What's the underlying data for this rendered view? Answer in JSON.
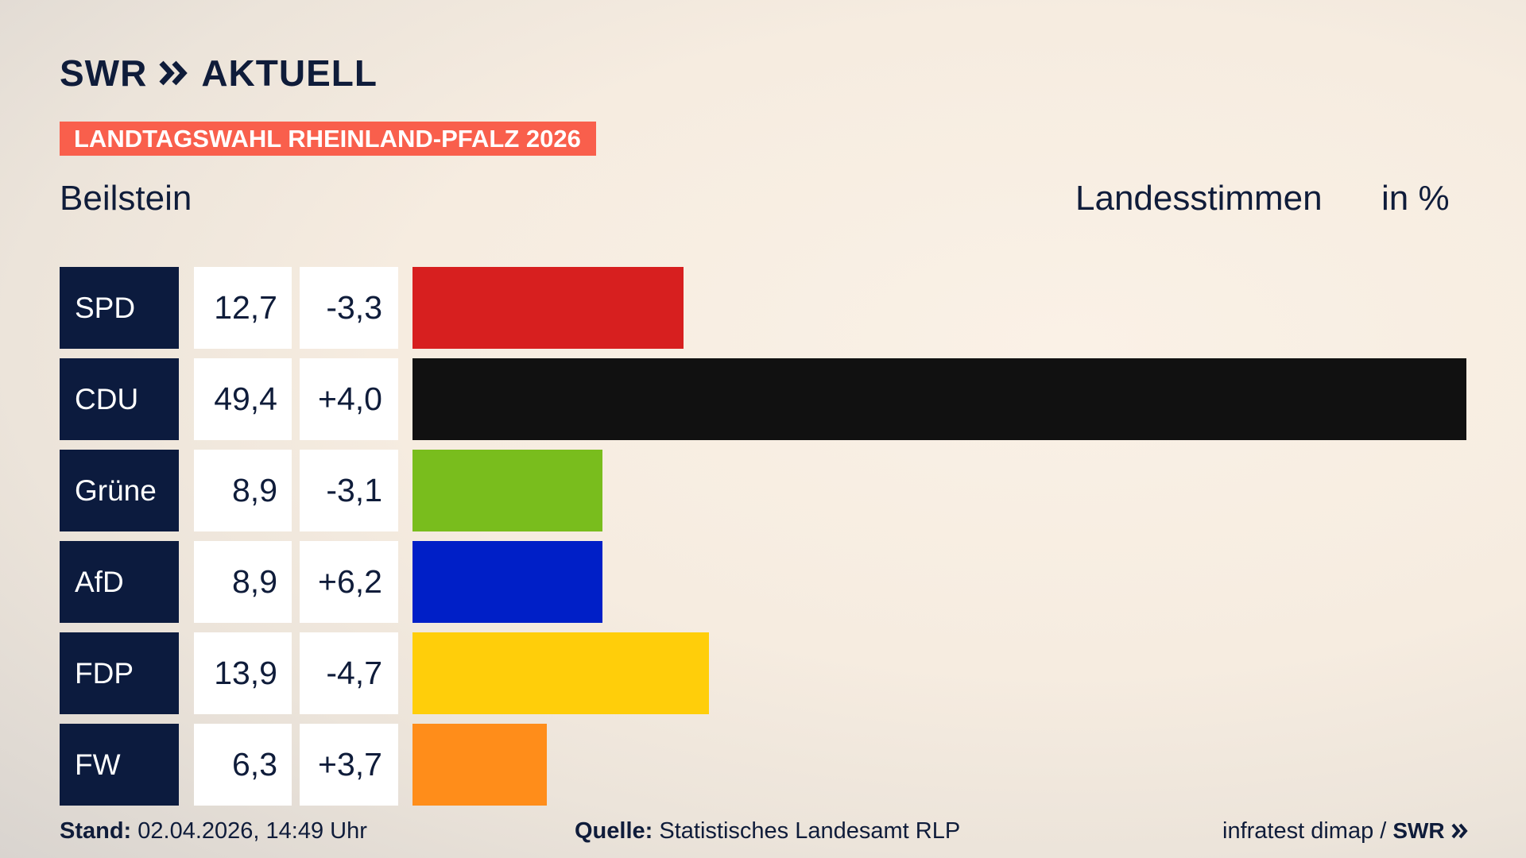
{
  "header": {
    "logo_swr": "SWR",
    "logo_aktuell": "AKTUELL",
    "banner": "LANDTAGSWAHL RHEINLAND-PFALZ 2026",
    "region": "Beilstein",
    "metric": "Landesstimmen",
    "unit": "in %"
  },
  "chart_data": {
    "type": "bar",
    "categories": [
      "SPD",
      "CDU",
      "Grüne",
      "AfD",
      "FDP",
      "FW"
    ],
    "values": [
      12.7,
      49.4,
      8.9,
      8.9,
      13.9,
      6.3
    ],
    "changes": [
      -3.3,
      4.0,
      -3.1,
      6.2,
      -4.7,
      3.7
    ],
    "value_labels": [
      "12,7",
      "49,4",
      "8,9",
      "8,9",
      "13,9",
      "6,3"
    ],
    "change_labels": [
      "-3,3",
      "+4,0",
      "-3,1",
      "+6,2",
      "-4,7",
      "+3,7"
    ],
    "colors": [
      "#d71f1f",
      "#111111",
      "#79bd1d",
      "#001fc7",
      "#ffce0a",
      "#ff8d1a"
    ],
    "xlim": [
      0,
      49.4
    ],
    "orientation": "horizontal",
    "grid": false,
    "legend": "none"
  },
  "footer": {
    "stand_label": "Stand:",
    "stand_value": "02.04.2026, 14:49 Uhr",
    "quelle_label": "Quelle:",
    "quelle_value": "Statistisches Landesamt RLP",
    "credit": "infratest dimap /",
    "credit_logo": "SWR"
  }
}
